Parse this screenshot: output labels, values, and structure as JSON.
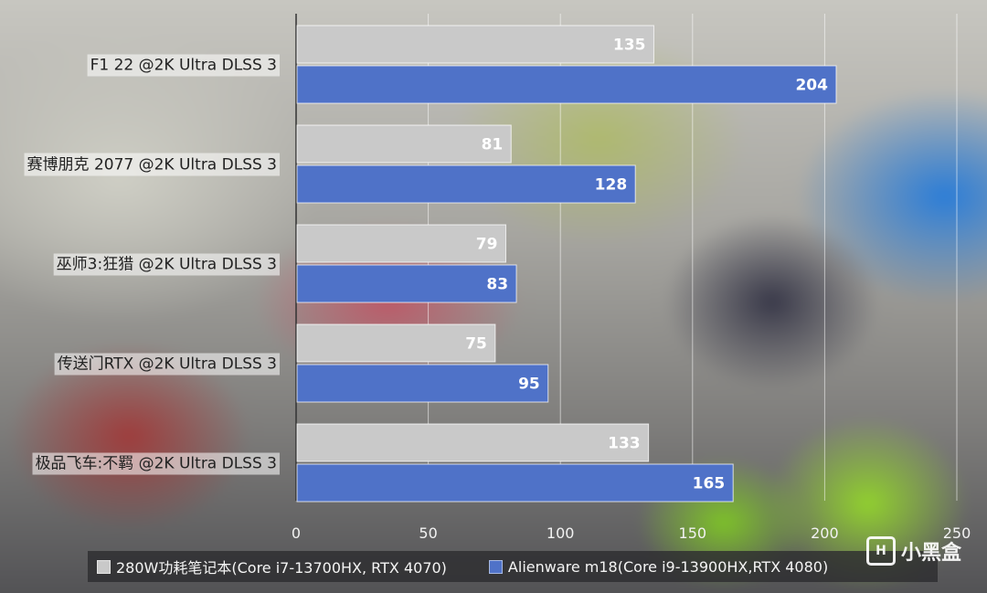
{
  "colors": {
    "series_a": "#c9c9c9",
    "series_b": "#4f72c8"
  },
  "chart_data": {
    "type": "bar",
    "orientation": "horizontal",
    "categories": [
      "F1 22 @2K Ultra DLSS 3",
      "赛博朋克 2077 @2K Ultra DLSS 3",
      "巫师3:狂猎 @2K Ultra DLSS 3",
      "传送门RTX @2K Ultra DLSS 3",
      "极品飞车:不羁 @2K Ultra DLSS 3"
    ],
    "series": [
      {
        "name": "280W功耗笔记本(Core i7-13700HX, RTX 4070)",
        "values": [
          135,
          81,
          79,
          75,
          133
        ]
      },
      {
        "name": "Alienware m18(Core i9-13900HX,RTX 4080)",
        "values": [
          204,
          128,
          83,
          95,
          165
        ]
      }
    ],
    "xlim": [
      0,
      250
    ],
    "xticks": [
      0,
      50,
      100,
      150,
      200,
      250
    ],
    "grid": true,
    "legend_position": "bottom"
  },
  "watermark": {
    "text": "小黑盒",
    "glyph": "H"
  }
}
